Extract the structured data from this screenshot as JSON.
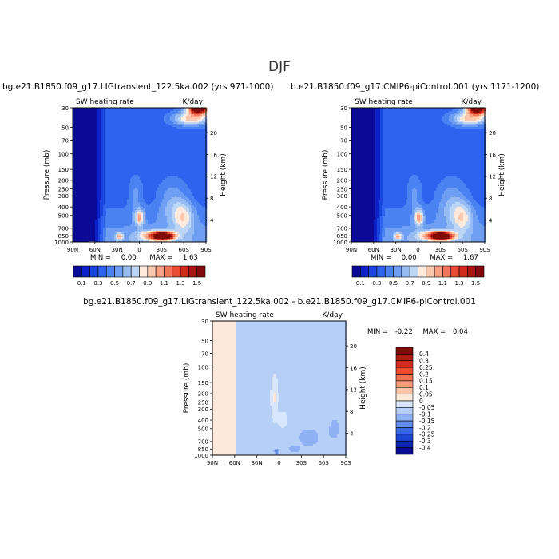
{
  "figure": {
    "season": "DJF",
    "variable_label": "SW heating rate",
    "units_label": "K/day",
    "x_ticks": [
      "90N",
      "60N",
      "30N",
      "0",
      "30S",
      "60S",
      "90S"
    ],
    "p_ticks": [
      "30",
      "50",
      "70",
      "100",
      "150",
      "200",
      "250",
      "300",
      "400",
      "500",
      "700",
      "850",
      "1000"
    ],
    "p_tick_values": [
      30,
      50,
      70,
      100,
      150,
      200,
      250,
      300,
      400,
      500,
      700,
      850,
      1000
    ],
    "h_ticks": [
      "20",
      "16",
      "12",
      "8",
      "4"
    ],
    "h_tick_values": [
      20,
      16,
      12,
      8,
      4
    ],
    "left_axis_label": "Pressure (mb)",
    "right_axis_label": "Height (km)"
  },
  "panels": {
    "left": {
      "title": "bg.e21.B1850.f09_g17.LIGtransient_122.5ka.002 (yrs 971-1000)",
      "min_label": "MIN =",
      "min_value": "0.00",
      "max_label": "MAX =",
      "max_value": "1.63"
    },
    "right": {
      "title": "b.e21.B1850.f09_g17.CMIP6-piControl.001 (yrs 1171-1200)",
      "min_label": "MIN =",
      "min_value": "0.00",
      "max_label": "MAX =",
      "max_value": "1.67"
    },
    "diff": {
      "title": "bg.e21.B1850.f09_g17.LIGtransient_122.5ka.002 - b.e21.B1850.f09_g17.CMIP6-piControl.001",
      "min_label": "MIN =",
      "min_value": "-0.22",
      "max_label": "MAX =",
      "max_value": "0.04"
    }
  },
  "colorbars": {
    "abs": {
      "labels": [
        "0.1",
        "0.3",
        "0.5",
        "0.7",
        "0.9",
        "1.1",
        "1.3",
        "1.5"
      ],
      "colors": [
        "#0a0a96",
        "#0c22c8",
        "#1a44e0",
        "#2e63ef",
        "#4b82f2",
        "#6f9ff2",
        "#97bcf3",
        "#bed6f6",
        "#ffe9dc",
        "#fcc8ad",
        "#f9a283",
        "#f3785a",
        "#e94c32",
        "#cf2a1c",
        "#a81512",
        "#7f0b0b"
      ]
    },
    "diff": {
      "labels": [
        "0.4",
        "0.3",
        "0.25",
        "0.2",
        "0.15",
        "0.1",
        "0.05",
        "0",
        "-0.05",
        "-0.1",
        "-0.15",
        "-0.2",
        "-0.25",
        "-0.3",
        "-0.4"
      ],
      "colors": [
        "#7f0b0b",
        "#b01a14",
        "#d82a1c",
        "#ee4a2e",
        "#f5704f",
        "#f99a78",
        "#fcc4a6",
        "#fde8dc",
        "#d7e6fb",
        "#b6cff6",
        "#8fb1f3",
        "#5f8df0",
        "#3666e6",
        "#1a45d6",
        "#0f26b4",
        "#0a0a8c"
      ]
    }
  },
  "chart_data": [
    {
      "type": "heatmap",
      "panel": "left",
      "title": "bg.e21.B1850.f09_g17.LIGtransient_122.5ka.002 (yrs 971-1000)",
      "xlabel": "",
      "ylabel": "Pressure (mb)",
      "y2label": "Height (km)",
      "x_range": [
        90,
        -90
      ],
      "y_range_mb": [
        1000,
        30
      ],
      "y_scale": "log",
      "min": 0.0,
      "max": 1.63,
      "features": [
        {
          "lat": -33,
          "p_mb": 860,
          "value": 1.6
        },
        {
          "lat": 0,
          "p_mb": 520,
          "value": 1.0
        },
        {
          "lat": 27,
          "p_mb": 860,
          "value": 1.0
        },
        {
          "lat": -60,
          "p_mb": 550,
          "value": 0.9
        },
        {
          "lat": -75,
          "p_mb": 30,
          "value": 1.5
        }
      ]
    },
    {
      "type": "heatmap",
      "panel": "right",
      "title": "b.e21.B1850.f09_g17.CMIP6-piControl.001 (yrs 1171-1200)",
      "xlabel": "",
      "ylabel": "Pressure (mb)",
      "y2label": "Height (km)",
      "x_range": [
        90,
        -90
      ],
      "y_range_mb": [
        1000,
        30
      ],
      "y_scale": "log",
      "min": 0.0,
      "max": 1.67,
      "features": [
        {
          "lat": -35,
          "p_mb": 860,
          "value": 1.65
        },
        {
          "lat": 0,
          "p_mb": 500,
          "value": 1.0
        },
        {
          "lat": 28,
          "p_mb": 860,
          "value": 1.0
        },
        {
          "lat": -60,
          "p_mb": 550,
          "value": 0.95
        },
        {
          "lat": -75,
          "p_mb": 30,
          "value": 1.5
        }
      ]
    },
    {
      "type": "heatmap",
      "panel": "diff",
      "title": "bg.e21.B1850.f09_g17.LIGtransient_122.5ka.002 - b.e21.B1850.f09_g17.CMIP6-piControl.001",
      "xlabel": "",
      "ylabel": "Pressure (mb)",
      "y2label": "Height (km)",
      "x_range": [
        90,
        -90
      ],
      "y_range_mb": [
        1000,
        30
      ],
      "y_scale": "log",
      "min": -0.22,
      "max": 0.04,
      "features": [
        {
          "lat": 70,
          "p_mb": 400,
          "value": 0.02
        },
        {
          "lat": 5,
          "p_mb": 200,
          "value": 0.02
        },
        {
          "lat": -30,
          "p_mb": 700,
          "value": -0.12
        },
        {
          "lat": -70,
          "p_mb": 600,
          "value": -0.08
        },
        {
          "lat": 5,
          "p_mb": 950,
          "value": -0.2
        }
      ]
    }
  ]
}
